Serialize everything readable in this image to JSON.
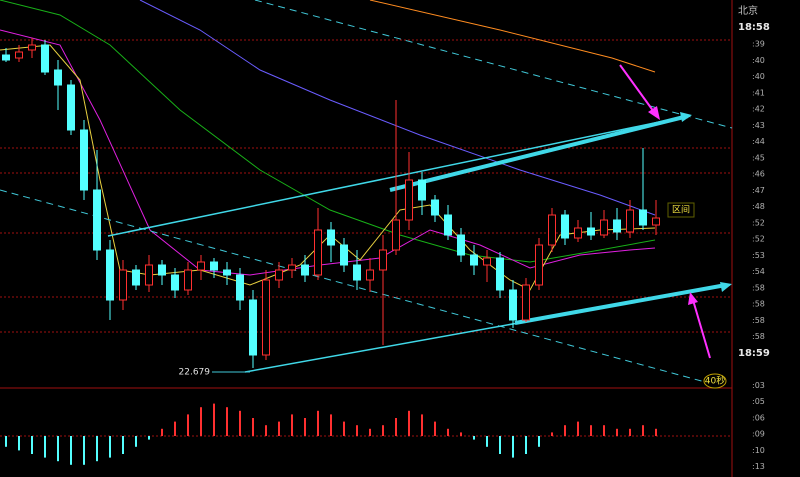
{
  "chart_data": {
    "type": "candlestick",
    "ylim": [
      22.635,
      23.415
    ],
    "open": [
      23.305,
      23.299,
      23.315,
      23.325,
      23.275,
      23.245,
      23.155,
      23.035,
      22.915,
      22.815,
      22.875,
      22.845,
      22.885,
      22.865,
      22.835,
      22.875,
      22.891,
      22.875,
      22.865,
      22.815,
      22.705,
      22.855,
      22.875,
      22.885,
      22.865,
      22.955,
      22.925,
      22.885,
      22.855,
      22.875,
      22.915,
      22.975,
      23.055,
      23.015,
      22.985,
      22.945,
      22.905,
      22.885,
      22.899,
      22.835,
      22.775,
      22.845,
      22.925,
      22.985,
      22.939,
      22.959,
      22.945,
      22.975,
      22.951,
      22.995,
      22.965
    ],
    "high": [
      23.319,
      23.325,
      23.339,
      23.335,
      23.295,
      23.255,
      23.175,
      23.115,
      22.935,
      22.895,
      22.885,
      22.905,
      22.895,
      22.879,
      22.891,
      22.905,
      22.899,
      22.891,
      22.879,
      22.835,
      22.875,
      22.891,
      22.899,
      22.905,
      22.999,
      22.971,
      22.939,
      22.915,
      22.899,
      22.945,
      23.215,
      23.111,
      23.071,
      23.025,
      23.005,
      22.959,
      22.925,
      22.915,
      22.911,
      22.855,
      22.859,
      22.939,
      22.999,
      22.995,
      22.975,
      22.991,
      22.995,
      22.999,
      23.015,
      23.119,
      23.015
    ],
    "low": [
      23.291,
      23.291,
      23.299,
      23.265,
      23.195,
      23.145,
      23.015,
      22.895,
      22.775,
      22.795,
      22.835,
      22.831,
      22.845,
      22.819,
      22.825,
      22.855,
      22.859,
      22.845,
      22.795,
      22.679,
      22.695,
      22.839,
      22.859,
      22.851,
      22.855,
      22.891,
      22.871,
      22.835,
      22.831,
      22.725,
      22.905,
      22.955,
      22.985,
      22.971,
      22.935,
      22.891,
      22.865,
      22.851,
      22.819,
      22.759,
      22.771,
      22.835,
      22.911,
      22.925,
      22.931,
      22.935,
      22.939,
      22.935,
      22.939,
      22.955,
      22.945
    ],
    "close": [
      23.295,
      23.311,
      23.325,
      23.271,
      23.245,
      23.155,
      23.035,
      22.915,
      22.815,
      22.875,
      22.845,
      22.885,
      22.865,
      22.835,
      22.875,
      22.891,
      22.875,
      22.865,
      22.815,
      22.705,
      22.855,
      22.875,
      22.885,
      22.865,
      22.955,
      22.925,
      22.885,
      22.855,
      22.875,
      22.915,
      22.975,
      23.055,
      23.015,
      22.985,
      22.945,
      22.905,
      22.885,
      22.899,
      22.835,
      22.775,
      22.845,
      22.925,
      22.985,
      22.939,
      22.959,
      22.945,
      22.975,
      22.951,
      22.995,
      22.965,
      22.979
    ],
    "up_color": "#ff3030",
    "down_color": "#54ffff",
    "low_marker": 22.679,
    "macd": {
      "ylim": [
        -1,
        1
      ],
      "values": [
        -0.3,
        -0.4,
        -0.5,
        -0.6,
        -0.7,
        -0.8,
        -0.8,
        -0.7,
        -0.6,
        -0.5,
        -0.3,
        -0.1,
        0.2,
        0.4,
        0.6,
        0.8,
        0.9,
        0.8,
        0.7,
        0.5,
        0.3,
        0.4,
        0.6,
        0.5,
        0.7,
        0.6,
        0.4,
        0.3,
        0.2,
        0.3,
        0.5,
        0.7,
        0.6,
        0.4,
        0.2,
        0.1,
        -0.1,
        -0.3,
        -0.5,
        -0.6,
        -0.5,
        -0.3,
        0.1,
        0.3,
        0.4,
        0.3,
        0.3,
        0.2,
        0.2,
        0.3,
        0.2
      ]
    },
    "city": "北京",
    "time": "18:58",
    "side_labels": [
      ":39",
      ":40",
      ":40",
      ":41",
      ":42",
      ":43",
      ":44",
      ":45",
      ":46",
      ":47",
      ":48",
      ":52",
      ":52",
      ":53",
      ":54",
      ":58",
      ":58",
      ":58",
      ":58",
      "18:59",
      null,
      ":03",
      ":05",
      ":06",
      ":09",
      ":10",
      ":13"
    ],
    "range_label": "区间",
    "timer_label": "40秒"
  }
}
